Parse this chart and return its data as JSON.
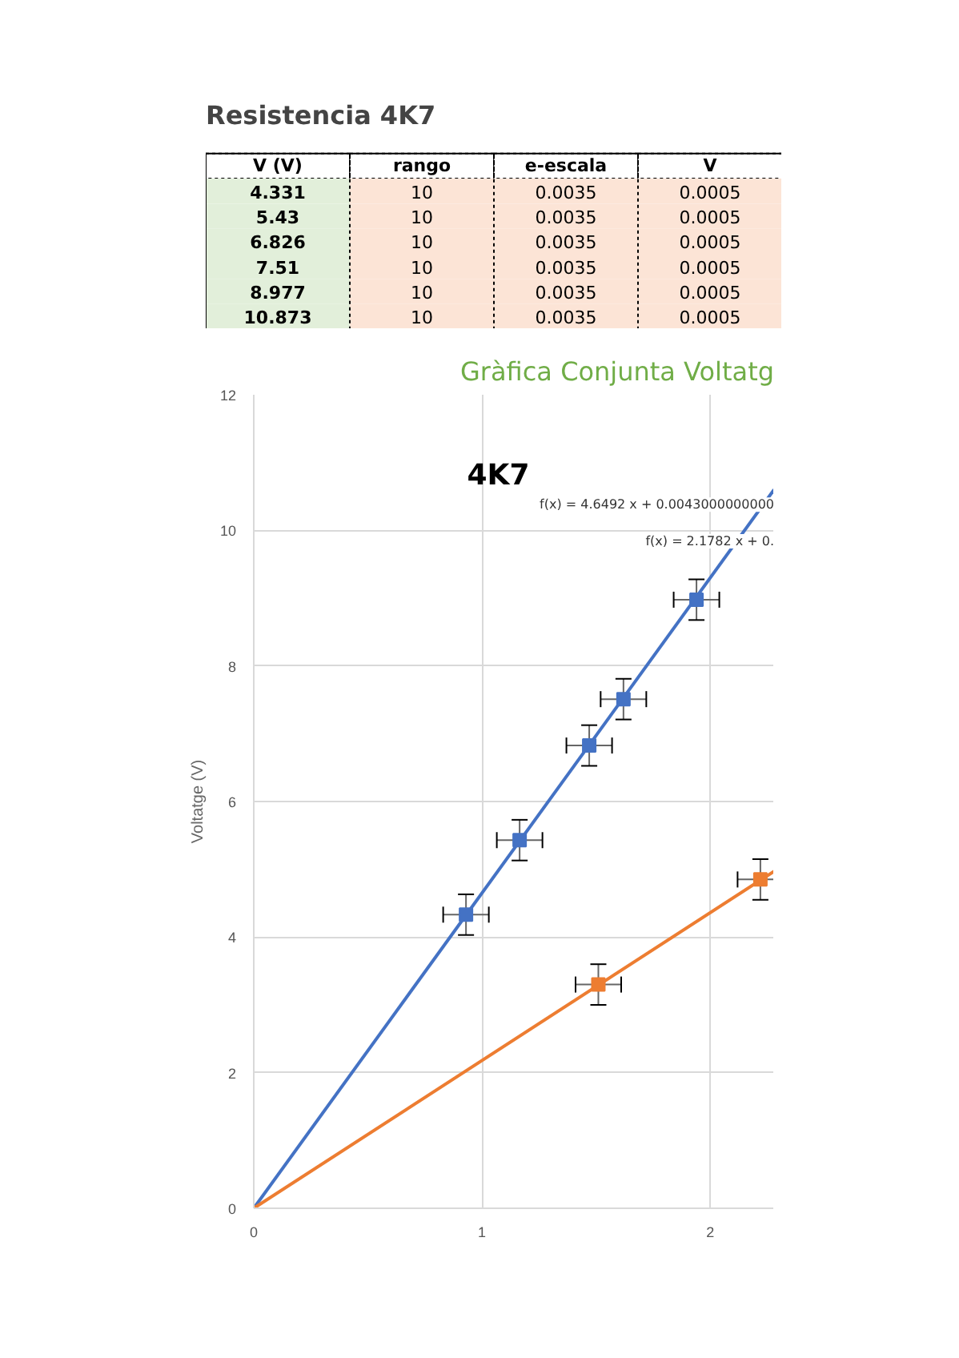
{
  "chart_data": [
    {
      "type": "other",
      "title": "Resistencia 4K7",
      "colors": [
        "#e2efda",
        "#fce4d6",
        "#fce4d6",
        "#fce4d6"
      ],
      "cell_labels": [
        [
          "V (V)",
          "rango",
          "e-escala",
          "V"
        ],
        [
          "4.331",
          "10",
          "0.0035",
          "0.0005"
        ],
        [
          "5.43",
          "10",
          "0.0035",
          "0.0005"
        ],
        [
          "6.826",
          "10",
          "0.0035",
          "0.0005"
        ],
        [
          "7.51",
          "10",
          "0.0035",
          "0.0005"
        ],
        [
          "8.977",
          "10",
          "0.0035",
          "0.0005"
        ],
        [
          "10.873",
          "10",
          "0.0035",
          "0.0005"
        ]
      ]
    },
    {
      "type": "scatter",
      "title": "Gràfica Conjunta Voltatg",
      "ylabel": "Voltatge (V)",
      "xlim": [
        0,
        2.28
      ],
      "xticks": [
        0,
        1,
        2
      ],
      "ylim": [
        0,
        12
      ],
      "yticks": [
        0,
        2,
        4,
        6,
        8,
        10,
        12
      ],
      "grid": true,
      "annotations": [
        "4K7",
        "f(x) = 4.6492 x + 0.0043000000000",
        "f(x) = 2.1782 x + 0."
      ],
      "series": [
        {
          "type": "line",
          "color": "#4472c4",
          "x": [
            0,
            2.28
          ],
          "values": [
            0,
            10.6
          ]
        },
        {
          "type": "line",
          "color": "#ed7d31",
          "x": [
            0,
            2.28
          ],
          "values": [
            0,
            4.97
          ]
        },
        {
          "type": "scatter",
          "marker": "square",
          "color": "#4472c4",
          "x": [
            0.93,
            1.165,
            1.47,
            1.62,
            1.94
          ],
          "values": [
            4.331,
            5.43,
            6.826,
            7.51,
            8.977
          ],
          "errors": [
            0.3,
            0.3,
            0.3,
            0.3,
            0.3
          ],
          "xerrors": [
            0.1,
            0.1,
            0.1,
            0.1,
            0.1
          ]
        },
        {
          "type": "scatter",
          "marker": "square",
          "color": "#ed7d31",
          "x": [
            1.51,
            2.22
          ],
          "values": [
            3.3,
            4.85
          ],
          "errors": [
            0.3,
            0.3
          ],
          "xerrors": [
            0.1,
            0.1
          ]
        }
      ]
    }
  ]
}
